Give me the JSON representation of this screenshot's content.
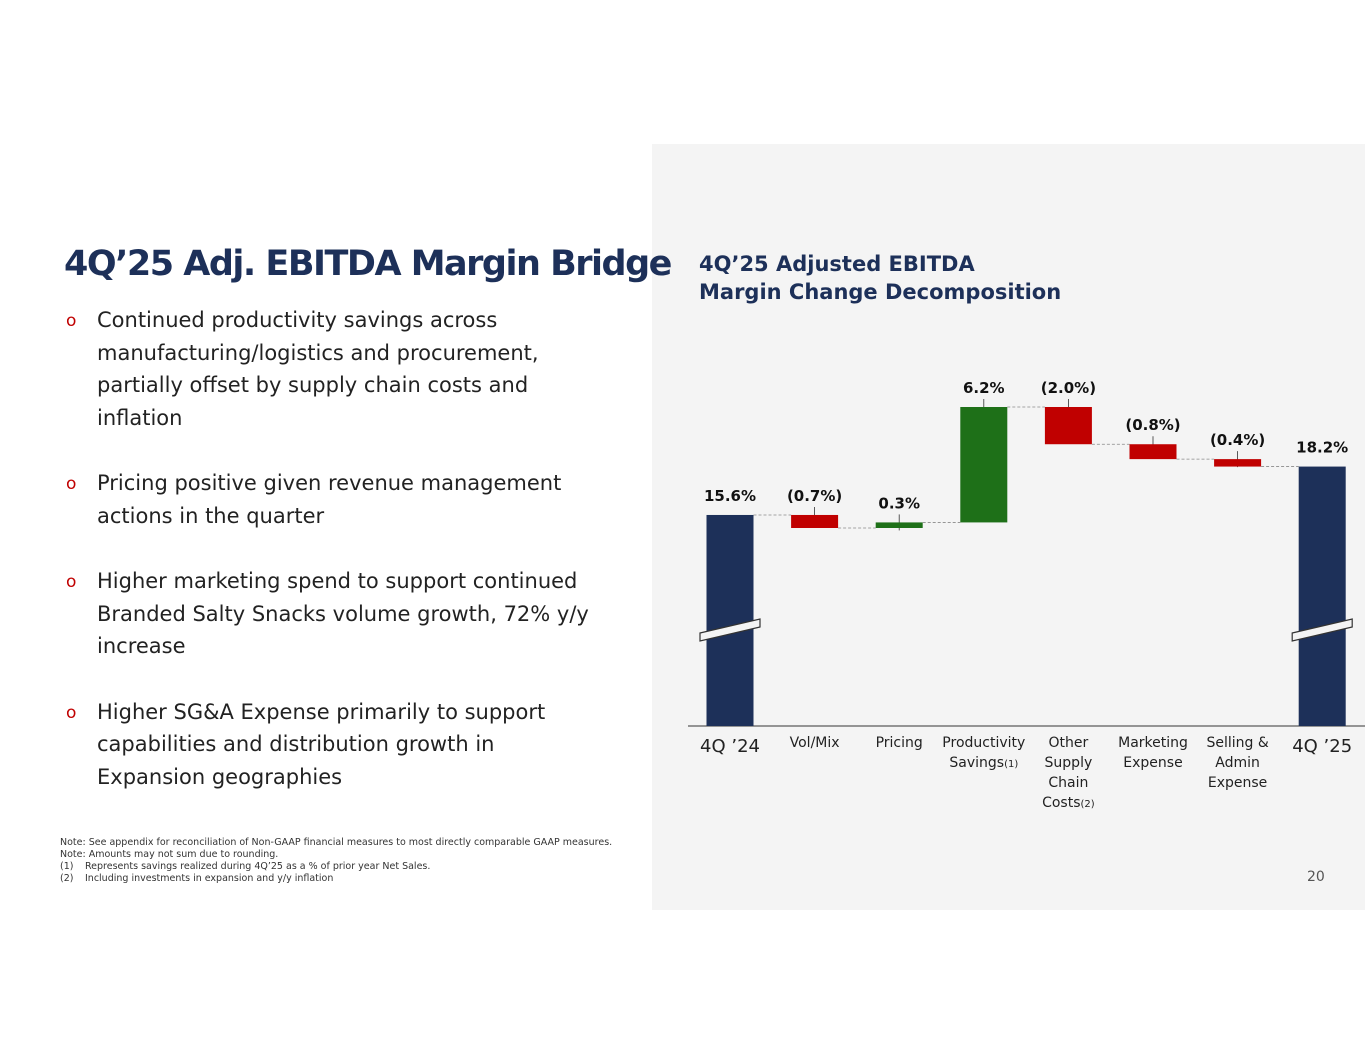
{
  "slide": {
    "title": "4Q’25 Adj. EBITDA Margin Bridge",
    "bullets": [
      "Continued productivity savings across manufacturing/logistics and procurement, partially offset by supply chain costs and inflation",
      "Pricing positive given revenue management actions in the quarter",
      "Higher marketing spend to support continued Branded Salty Snacks volume growth, 72% y/y increase",
      "Higher SG&A Expense primarily to support capabilities and distribution growth in Expansion geographies"
    ],
    "notes": [
      "Note: See appendix for reconciliation of Non-GAAP financial measures to most directly comparable GAAP measures.",
      "Note: Amounts may not sum due to rounding."
    ],
    "footnotes": [
      {
        "marker": "(1)",
        "text": "Represents savings realized during 4Q’25 as a % of prior year Net Sales."
      },
      {
        "marker": "(2)",
        "text": "Including investments in expansion and y/y inflation"
      }
    ],
    "page_number": "20"
  },
  "chart_data": {
    "type": "waterfall",
    "title": [
      "4Q’25 Adjusted EBITDA",
      "Margin Change Decomposition"
    ],
    "categories": [
      "4Q ’24",
      "Vol/Mix",
      "Pricing",
      "Productivity Savings",
      "Other Supply Chain Costs",
      "Marketing Expense",
      "Selling & Admin Expense",
      "4Q ’25"
    ],
    "category_notes": [
      null,
      null,
      null,
      "(1)",
      "(2)",
      null,
      null,
      null
    ],
    "measures": [
      "absolute",
      "relative",
      "relative",
      "relative",
      "relative",
      "relative",
      "relative",
      "total"
    ],
    "values": [
      15.6,
      -0.7,
      0.3,
      6.2,
      -2.0,
      -0.8,
      -0.4,
      18.2
    ],
    "value_labels": [
      "15.6%",
      "(0.7%)",
      "0.3%",
      "6.2%",
      "(2.0%)",
      "(0.8%)",
      "(0.4%)",
      "18.2%"
    ],
    "colors": {
      "total": "#1d3059",
      "increase": "#1e7018",
      "decrease": "#c00000"
    },
    "axis_break": true
  }
}
